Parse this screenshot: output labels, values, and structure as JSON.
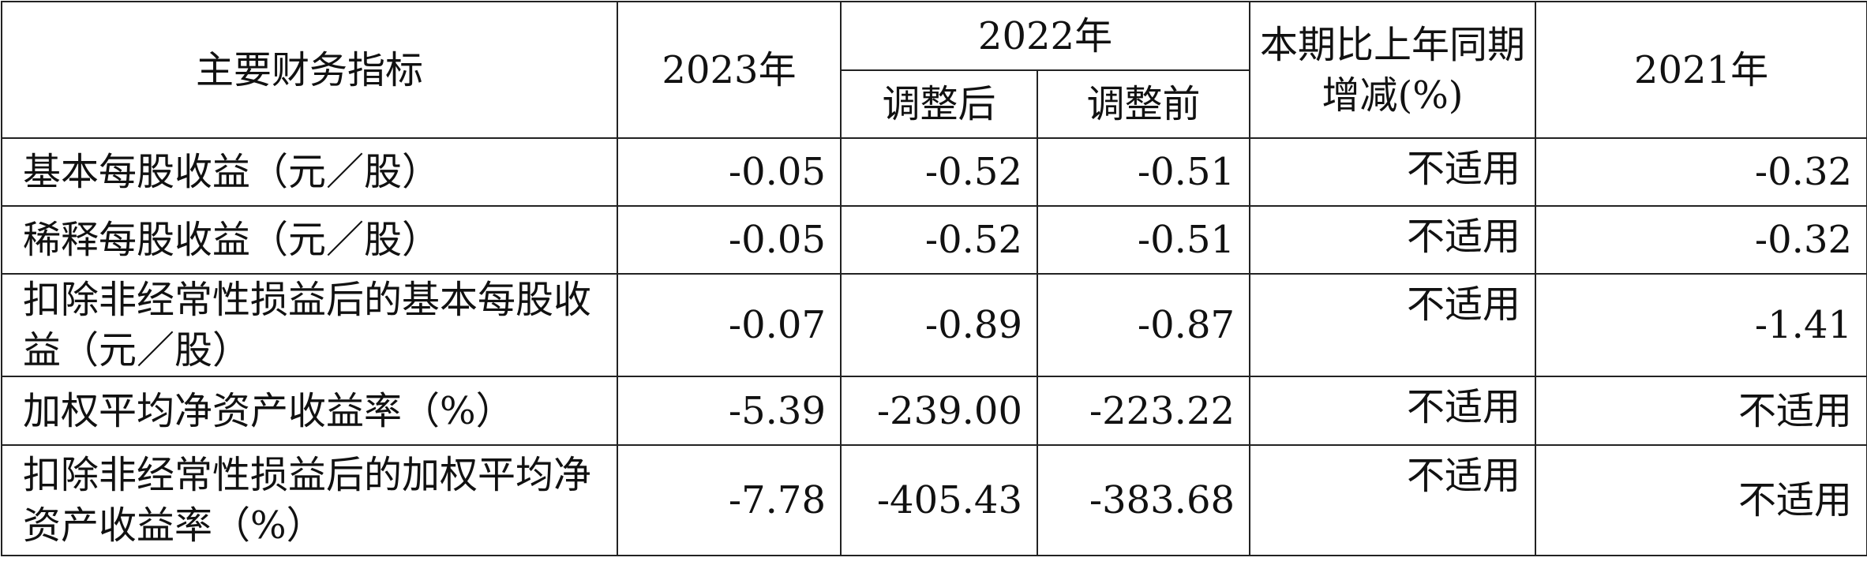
{
  "header": {
    "item": "主要财务指标",
    "y2023": "2023年",
    "y2022": "2022年",
    "adjusted": "调整后",
    "before_adjustment": "调整前",
    "change": "本期比上年同期增减(%)",
    "y2021": "2021年"
  },
  "table": {
    "rows": [
      [
        "基本每股收益（元／股）",
        "-0.05",
        "-0.52",
        "-0.51",
        "不适用",
        "-0.32"
      ],
      [
        "稀释每股收益（元／股）",
        "-0.05",
        "-0.52",
        "-0.51",
        "不适用",
        "-0.32"
      ],
      [
        "扣除非经常性损益后的基本每股收益（元／股）",
        "-0.07",
        "-0.89",
        "-0.87",
        "不适用",
        "-1.41"
      ],
      [
        "加权平均净资产收益率（%）",
        "-5.39",
        "-239.00",
        "-223.22",
        "不适用",
        "不适用"
      ],
      [
        "扣除非经常性损益后的加权平均净资产收益率（%）",
        "-7.78",
        "-405.43",
        "-383.68",
        "不适用",
        "不适用"
      ]
    ]
  }
}
